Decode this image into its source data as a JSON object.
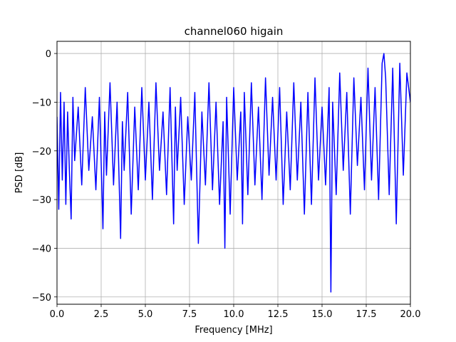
{
  "chart_data": {
    "type": "line",
    "title": "channel060 higain",
    "xlabel": "Frequency [MHz]",
    "ylabel": "PSD [dB]",
    "xlim": [
      0,
      20
    ],
    "ylim": [
      -51.5,
      2.5
    ],
    "grid": true,
    "x_ticks": [
      0,
      2.5,
      5,
      7.5,
      10,
      12.5,
      15,
      17.5,
      20
    ],
    "x_tick_labels": [
      "0.0",
      "2.5",
      "5.0",
      "7.5",
      "10.0",
      "12.5",
      "15.0",
      "17.5",
      "20.0"
    ],
    "y_ticks": [
      0,
      -10,
      -20,
      -30,
      -40,
      -50
    ],
    "y_tick_labels": [
      "0",
      "−10",
      "−20",
      "−30",
      "−40",
      "−50"
    ],
    "series": [
      {
        "color": "#0000ff",
        "x": [
          0.0,
          0.1,
          0.2,
          0.3,
          0.4,
          0.5,
          0.6,
          0.7,
          0.8,
          0.9,
          1.0,
          1.2,
          1.4,
          1.6,
          1.8,
          2.0,
          2.2,
          2.4,
          2.6,
          2.7,
          2.8,
          3.0,
          3.2,
          3.4,
          3.6,
          3.7,
          3.8,
          4.0,
          4.2,
          4.4,
          4.6,
          4.8,
          5.0,
          5.2,
          5.4,
          5.6,
          5.8,
          6.0,
          6.2,
          6.4,
          6.6,
          6.7,
          6.8,
          7.0,
          7.2,
          7.4,
          7.6,
          7.8,
          8.0,
          8.2,
          8.4,
          8.6,
          8.8,
          9.0,
          9.2,
          9.4,
          9.5,
          9.6,
          9.8,
          10.0,
          10.2,
          10.4,
          10.5,
          10.6,
          10.8,
          11.0,
          11.2,
          11.4,
          11.6,
          11.8,
          12.0,
          12.2,
          12.4,
          12.6,
          12.8,
          13.0,
          13.2,
          13.4,
          13.6,
          13.8,
          14.0,
          14.2,
          14.4,
          14.6,
          14.8,
          15.0,
          15.2,
          15.4,
          15.5,
          15.6,
          15.8,
          16.0,
          16.2,
          16.4,
          16.6,
          16.8,
          17.0,
          17.2,
          17.4,
          17.6,
          17.8,
          18.0,
          18.2,
          18.4,
          18.5,
          18.6,
          18.8,
          19.0,
          19.2,
          19.4,
          19.6,
          19.8,
          20.0
        ],
        "y": [
          -13,
          -32,
          -8,
          -26,
          -10,
          -31,
          -12,
          -24,
          -34,
          -9,
          -22,
          -11,
          -27,
          -7,
          -24,
          -13,
          -28,
          -9,
          -36,
          -12,
          -25,
          -6,
          -27,
          -10,
          -38,
          -14,
          -24,
          -8,
          -33,
          -11,
          -28,
          -7,
          -26,
          -10,
          -30,
          -6,
          -24,
          -12,
          -29,
          -7,
          -35,
          -11,
          -24,
          -9,
          -31,
          -13,
          -26,
          -8,
          -39,
          -12,
          -27,
          -6,
          -28,
          -10,
          -31,
          -14,
          -40,
          -9,
          -33,
          -7,
          -26,
          -12,
          -35,
          -8,
          -29,
          -6,
          -27,
          -11,
          -30,
          -5,
          -25,
          -9,
          -26,
          -7,
          -31,
          -12,
          -28,
          -6,
          -26,
          -10,
          -33,
          -8,
          -31,
          -5,
          -26,
          -11,
          -27,
          -7,
          -49,
          -10,
          -29,
          -4,
          -24,
          -8,
          -33,
          -5,
          -23,
          -9,
          -28,
          -3,
          -26,
          -7,
          -30,
          -2,
          0,
          -5,
          -29,
          -3,
          -35,
          -2,
          -25,
          -4,
          -10
        ]
      }
    ]
  }
}
